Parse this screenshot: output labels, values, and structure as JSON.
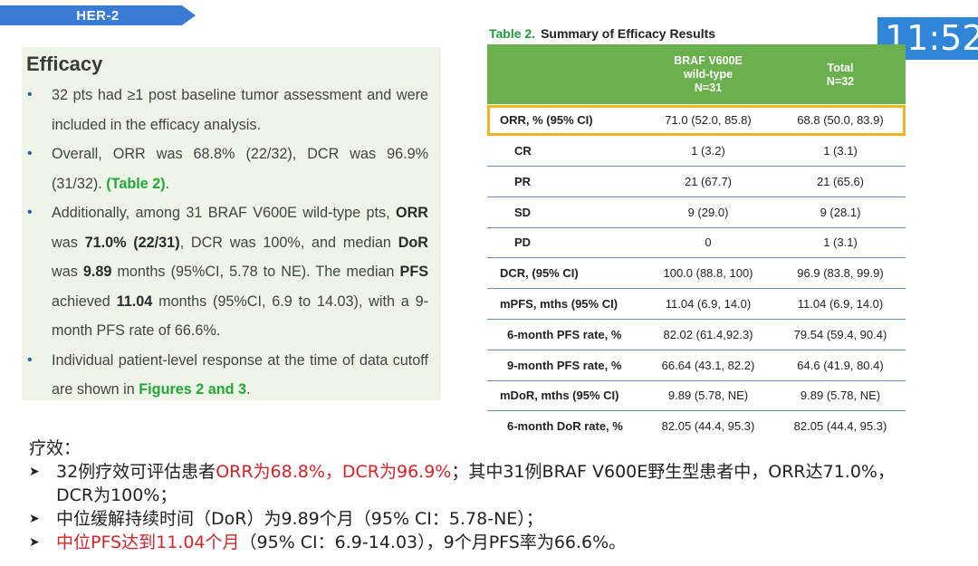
{
  "header": {
    "tag": "HER-2"
  },
  "timer": {
    "value": "11:52"
  },
  "efficacy": {
    "title": "Efficacy",
    "bullet1": {
      "t1": "32 pts had ≥1 post baseline tumor assessment and were included in the efficacy analysis."
    },
    "bullet2": {
      "t1": "Overall, ORR was 68.8% (22/32), DCR was 96.9% (31/32).",
      "t2": "(Table 2)",
      "t3": "."
    },
    "bullet3": {
      "t1": "Additionally, among 31 BRAF V600E wild-type pts,",
      "t2": "ORR",
      "t3": "was",
      "t4": "71.0% (22/31)",
      "t5": ", DCR was 100%, and median",
      "t6": "DoR",
      "t7": "was",
      "t8": "9.89",
      "t9": "months (95%CI, 5.78 to NE). The median",
      "t10": "PFS",
      "t11": "achieved",
      "t12": "11.04",
      "t13": "months (95%CI, 6.9 to 14.03), with a 9-month PFS rate of 66.6%."
    },
    "bullet4": {
      "t1": "Individual patient-level response at the time of data cutoff are shown in",
      "t2": "Figures 2 and 3",
      "t3": "."
    }
  },
  "table": {
    "title_num": "Table 2.",
    "title_text": "Summary of Efficacy Results",
    "col1": {
      "l1": "BRAF V600E",
      "l2": "wild-type",
      "l3": "N=31"
    },
    "col2": {
      "l1": "Total",
      "l2": "N=32"
    },
    "rows": [
      {
        "label": "ORR, % (95% CI)",
        "c1": "71.0 (52.0, 85.8)",
        "c2": "68.8 (50.0, 83.9)"
      },
      {
        "label": "CR",
        "c1": "1 (3.2)",
        "c2": "1 (3.1)"
      },
      {
        "label": "PR",
        "c1": "21 (67.7)",
        "c2": "21 (65.6)"
      },
      {
        "label": "SD",
        "c1": "9 (29.0)",
        "c2": "9 (28.1)"
      },
      {
        "label": "PD",
        "c1": "0",
        "c2": "1 (3.1)"
      },
      {
        "label": "DCR, (95% CI)",
        "c1": "100.0 (88.8, 100)",
        "c2": "96.9 (83.8, 99.9)"
      },
      {
        "label": "mPFS, mths (95% CI)",
        "c1": "11.04 (6.9, 14.0)",
        "c2": "11.04 (6.9, 14.0)"
      },
      {
        "label": "6-month PFS rate, %",
        "c1": "82.02 (61.4,92.3)",
        "c2": "79.54 (59.4, 90.4)"
      },
      {
        "label": "9-month PFS rate, %",
        "c1": "66.64 (43.1, 82.2)",
        "c2": "64.6 (41.9, 80.4)"
      },
      {
        "label": "mDoR, mths (95% CI)",
        "c1": "9.89 (5.78, NE)",
        "c2": "9.89 (5.78, NE)"
      },
      {
        "label": "6-month DoR rate, %",
        "c1": "82.05 (44.4, 95.3)",
        "c2": "82.05 (44.4, 95.3)"
      }
    ]
  },
  "notes": {
    "title": "疗效：",
    "n1": {
      "t1": "32例疗效可评估患者",
      "t2": "ORR为68.8%，DCR为96.9%",
      "t3": "；其中31例BRAF V600E野生型患者中，ORR达71.0%，",
      "t4": "DCR为100%；"
    },
    "n2": {
      "t1": "中位缓解持续时间（DoR）为9.89个月（95% CI：5.78-NE）；"
    },
    "n3": {
      "t1": "中位PFS达到11.04个月",
      "t2": "（95% CI：6.9-14.03），9个月PFS率为66.6%。"
    }
  },
  "colors": {
    "accent_blue": "#3a7bd5",
    "table_green": "#6ab04c",
    "highlight": "#f2b31c",
    "red": "#d3242b",
    "link_green": "#22a838"
  }
}
